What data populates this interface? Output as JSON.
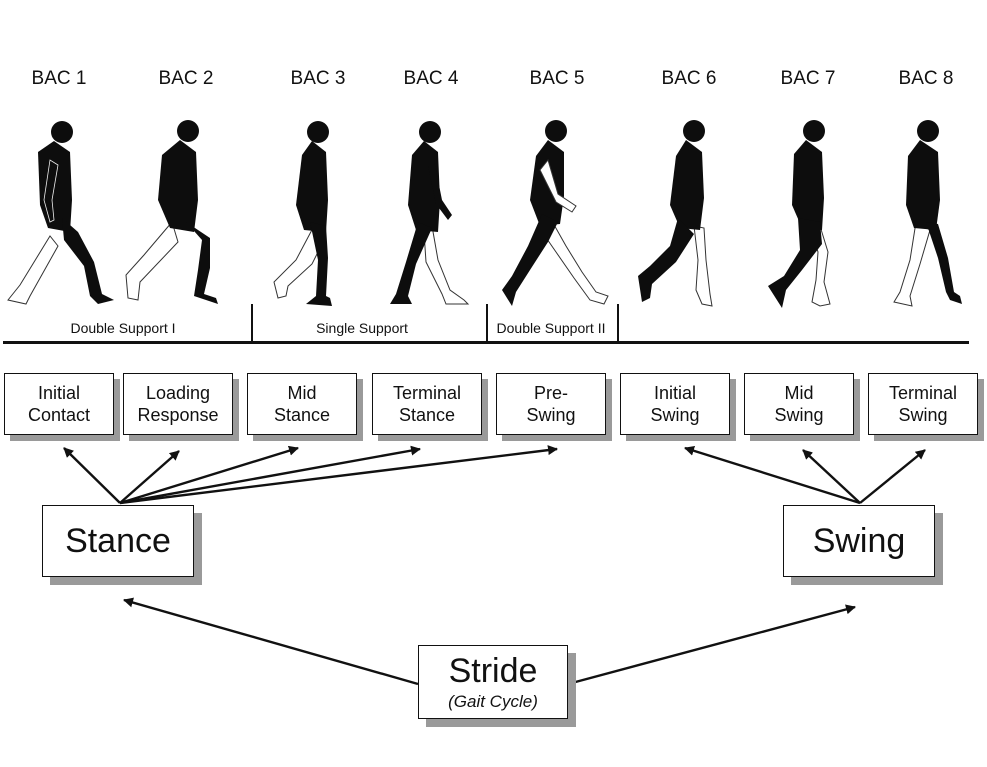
{
  "bac_labels": [
    "BAC 1",
    "BAC 2",
    "BAC 3",
    "BAC 4",
    "BAC 5",
    "BAC 6",
    "BAC 7",
    "BAC 8"
  ],
  "support_phases": [
    "Double Support I",
    "Single Support",
    "Double Support II"
  ],
  "gait_phases": [
    [
      "Initial",
      "Contact"
    ],
    [
      "Loading",
      "Response"
    ],
    [
      "Mid",
      "Stance"
    ],
    [
      "Terminal",
      "Stance"
    ],
    [
      "Pre-",
      "Swing"
    ],
    [
      "Initial",
      "Swing"
    ],
    [
      "Mid",
      "Swing"
    ],
    [
      "Terminal",
      "Swing"
    ]
  ],
  "stance_label": "Stance",
  "swing_label": "Swing",
  "stride_label": "Stride",
  "stride_sublabel": "(Gait Cycle)",
  "colors": {
    "figure": "#0d0d0d",
    "shadow": "#9a9a9a",
    "line": "#111111"
  }
}
